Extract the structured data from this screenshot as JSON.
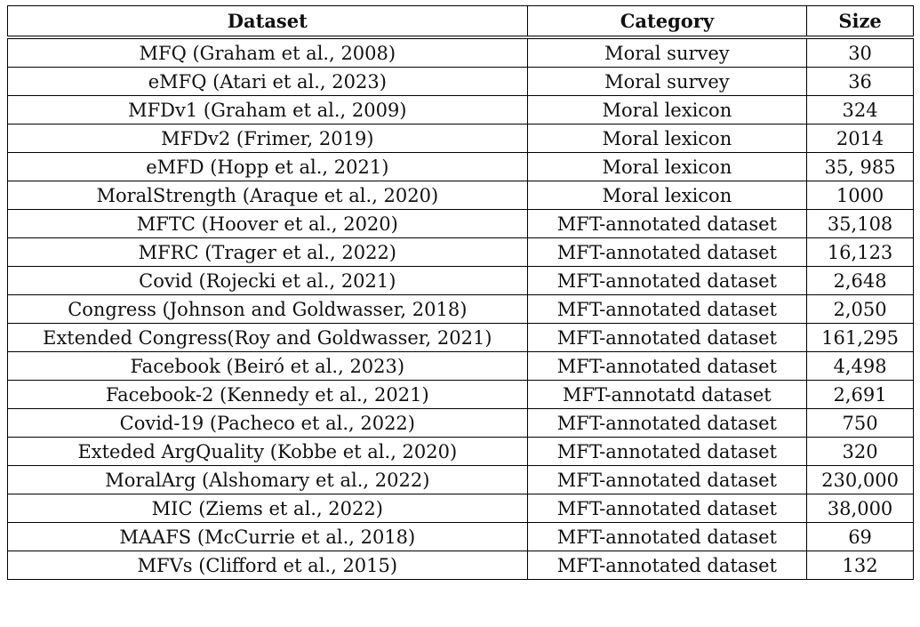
{
  "table": {
    "headers": [
      "Dataset",
      "Category",
      "Size"
    ],
    "rows": [
      [
        "MFQ (Graham et al., 2008)",
        "Moral survey",
        "30"
      ],
      [
        "eMFQ (Atari et al., 2023)",
        "Moral survey",
        "36"
      ],
      [
        "MFDv1 (Graham et al., 2009)",
        "Moral lexicon",
        "324"
      ],
      [
        "MFDv2 (Frimer, 2019)",
        "Moral lexicon",
        "2014"
      ],
      [
        "eMFD (Hopp et al., 2021)",
        "Moral lexicon",
        "35, 985"
      ],
      [
        "MoralStrength (Araque et al., 2020)",
        "Moral lexicon",
        "1000"
      ],
      [
        "MFTC (Hoover et al., 2020)",
        "MFT-annotated dataset",
        "35,108"
      ],
      [
        "MFRC (Trager et al., 2022)",
        "MFT-annotated dataset",
        "16,123"
      ],
      [
        "Covid (Rojecki et al., 2021)",
        "MFT-annotated dataset",
        "2,648"
      ],
      [
        "Congress (Johnson and Goldwasser, 2018)",
        "MFT-annotated dataset",
        "2,050"
      ],
      [
        "Extended Congress(Roy and Goldwasser, 2021)",
        "MFT-annotated dataset",
        "161,295"
      ],
      [
        "Facebook (Beiró et al., 2023)",
        "MFT-annotated dataset",
        "4,498"
      ],
      [
        "Facebook-2 (Kennedy et al., 2021)",
        "MFT-annotatd dataset",
        "2,691"
      ],
      [
        "Covid-19 (Pacheco et al., 2022)",
        "MFT-annotated dataset",
        "750"
      ],
      [
        "Exteded ArgQuality (Kobbe et al., 2020)",
        "MFT-annotated dataset",
        "320"
      ],
      [
        "MoralArg (Alshomary et al., 2022)",
        "MFT-annotated dataset",
        "230,000"
      ],
      [
        "MIC (Ziems et al., 2022)",
        "MFT-annotated dataset",
        "38,000"
      ],
      [
        "MAAFS (McCurrie et al., 2018)",
        "MFT-annotated dataset",
        "69"
      ],
      [
        "MFVs (Clifford et al., 2015)",
        "MFT-annotated dataset",
        "132"
      ]
    ]
  }
}
